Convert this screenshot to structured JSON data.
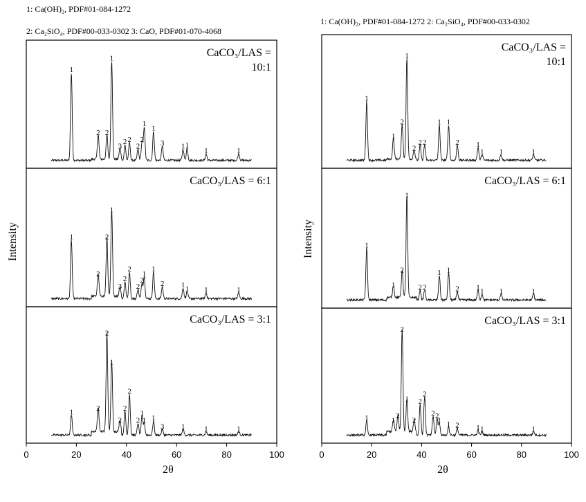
{
  "legend": {
    "left_line1": "1: Ca(OH)₂, PDF#01-084-1272",
    "left_line2": "2: Ca₂SiO₄, PDF#00-033-0302  3: CaO, PDF#01-070-4068",
    "right_line1": "1: Ca(OH)₂, PDF#01-084-1272  2: Ca₂SiO₄, PDF#00-033-0302"
  },
  "chart_data": [
    {
      "type": "line",
      "title": "",
      "xlabel": "2θ",
      "ylabel": "Intensity",
      "xlim": [
        0,
        100
      ],
      "xticks": [
        0,
        20,
        40,
        60,
        80,
        100
      ],
      "panels": [
        {
          "label_lines": [
            "CaCO₃/LAS =",
            "10:1"
          ],
          "peaks": [
            {
              "x": 18.0,
              "h": 0.78,
              "label": "1"
            },
            {
              "x": 28.7,
              "h": 0.22,
              "label": "2"
            },
            {
              "x": 32.2,
              "h": 0.22,
              "label": "2"
            },
            {
              "x": 34.1,
              "h": 0.88,
              "label": "1"
            },
            {
              "x": 37.4,
              "h": 0.1,
              "label": "3"
            },
            {
              "x": 39.4,
              "h": 0.14,
              "label": "2"
            },
            {
              "x": 41.2,
              "h": 0.16,
              "label": "2"
            },
            {
              "x": 44.6,
              "h": 0.1,
              "label": "2"
            },
            {
              "x": 46.2,
              "h": 0.16,
              "label": "2"
            },
            {
              "x": 47.1,
              "h": 0.3,
              "label": "1"
            },
            {
              "x": 50.8,
              "h": 0.26,
              "label": "1"
            },
            {
              "x": 54.3,
              "h": 0.13,
              "label": "3"
            },
            {
              "x": 62.6,
              "h": 0.1,
              "label": "1"
            },
            {
              "x": 64.2,
              "h": 0.11,
              "label": "1"
            },
            {
              "x": 71.8,
              "h": 0.06,
              "label": "1"
            },
            {
              "x": 84.8,
              "h": 0.06,
              "label": "1"
            }
          ]
        },
        {
          "label_lines": [
            "CaCO₃/LAS = 6:1"
          ],
          "peaks": [
            {
              "x": 18.0,
              "h": 0.48,
              "label": "1"
            },
            {
              "x": 28.7,
              "h": 0.18,
              "label": "2"
            },
            {
              "x": 32.2,
              "h": 0.48,
              "label": "2"
            },
            {
              "x": 34.1,
              "h": 0.7,
              "label": "1"
            },
            {
              "x": 37.4,
              "h": 0.08,
              "label": "3"
            },
            {
              "x": 39.4,
              "h": 0.14,
              "label": "2"
            },
            {
              "x": 41.2,
              "h": 0.22,
              "label": "2"
            },
            {
              "x": 44.6,
              "h": 0.08,
              "label": "2"
            },
            {
              "x": 46.2,
              "h": 0.13,
              "label": "2"
            },
            {
              "x": 47.1,
              "h": 0.18,
              "label": "1"
            },
            {
              "x": 50.8,
              "h": 0.22,
              "label": "1"
            },
            {
              "x": 54.3,
              "h": 0.1,
              "label": "2"
            },
            {
              "x": 62.6,
              "h": 0.09,
              "label": "1"
            },
            {
              "x": 64.2,
              "h": 0.06,
              "label": "1"
            },
            {
              "x": 71.8,
              "h": 0.05,
              "label": "1"
            },
            {
              "x": 84.8,
              "h": 0.05,
              "label": "1"
            }
          ]
        },
        {
          "label_lines": [
            "CaCO₃/LAS = 3:1"
          ],
          "peaks": [
            {
              "x": 18.0,
              "h": 0.17,
              "label": "1"
            },
            {
              "x": 28.7,
              "h": 0.2,
              "label": "2"
            },
            {
              "x": 32.2,
              "h": 0.82,
              "label": "2"
            },
            {
              "x": 34.1,
              "h": 0.58,
              "label": "1"
            },
            {
              "x": 37.4,
              "h": 0.1,
              "label": "2"
            },
            {
              "x": 39.4,
              "h": 0.2,
              "label": "2"
            },
            {
              "x": 41.2,
              "h": 0.34,
              "label": "2"
            },
            {
              "x": 44.6,
              "h": 0.1,
              "label": "2"
            },
            {
              "x": 46.2,
              "h": 0.16,
              "label": "1"
            },
            {
              "x": 47.1,
              "h": 0.1,
              "label": "1"
            },
            {
              "x": 50.8,
              "h": 0.12,
              "label": "1"
            },
            {
              "x": 54.3,
              "h": 0.05,
              "label": "3"
            },
            {
              "x": 62.6,
              "h": 0.05,
              "label": "1"
            },
            {
              "x": 71.8,
              "h": 0.03,
              "label": "1"
            },
            {
              "x": 84.8,
              "h": 0.03,
              "label": "1"
            }
          ]
        }
      ]
    },
    {
      "type": "line",
      "title": "",
      "xlabel": "2θ",
      "ylabel": "Intensity",
      "xlim": [
        0,
        100
      ],
      "xticks": [
        0,
        20,
        40,
        60,
        80,
        100
      ],
      "panels": [
        {
          "label_lines": [
            "CaCO₃/LAS =",
            "10:1"
          ],
          "peaks": [
            {
              "x": 18.0,
              "h": 0.5,
              "label": "1"
            },
            {
              "x": 28.7,
              "h": 0.18,
              "label": "1"
            },
            {
              "x": 32.2,
              "h": 0.3,
              "label": "2"
            },
            {
              "x": 34.1,
              "h": 0.86,
              "label": "1"
            },
            {
              "x": 37.0,
              "h": 0.08,
              "label": "2"
            },
            {
              "x": 39.4,
              "h": 0.13,
              "label": "2"
            },
            {
              "x": 41.2,
              "h": 0.13,
              "label": "2"
            },
            {
              "x": 47.1,
              "h": 0.3,
              "label": "1"
            },
            {
              "x": 50.8,
              "h": 0.3,
              "label": "1"
            },
            {
              "x": 54.3,
              "h": 0.13,
              "label": "2"
            },
            {
              "x": 62.6,
              "h": 0.11,
              "label": "1"
            },
            {
              "x": 64.2,
              "h": 0.05,
              "label": "1"
            },
            {
              "x": 71.8,
              "h": 0.05,
              "label": "1"
            },
            {
              "x": 84.8,
              "h": 0.05,
              "label": "1"
            }
          ]
        },
        {
          "label_lines": [
            "CaCO₃/LAS = 6:1"
          ],
          "peaks": [
            {
              "x": 18.0,
              "h": 0.42,
              "label": "1"
            },
            {
              "x": 28.7,
              "h": 0.1,
              "label": "1"
            },
            {
              "x": 32.2,
              "h": 0.22,
              "label": "2"
            },
            {
              "x": 34.1,
              "h": 0.82,
              "label": "1"
            },
            {
              "x": 39.4,
              "h": 0.08,
              "label": "2"
            },
            {
              "x": 41.2,
              "h": 0.08,
              "label": "2"
            },
            {
              "x": 47.1,
              "h": 0.2,
              "label": "1"
            },
            {
              "x": 50.8,
              "h": 0.22,
              "label": "1"
            },
            {
              "x": 54.3,
              "h": 0.07,
              "label": "2"
            },
            {
              "x": 62.6,
              "h": 0.08,
              "label": "1"
            },
            {
              "x": 64.2,
              "h": 0.05,
              "label": "1"
            },
            {
              "x": 71.8,
              "h": 0.05,
              "label": "1"
            },
            {
              "x": 84.8,
              "h": 0.05,
              "label": "1"
            }
          ]
        },
        {
          "label_lines": [
            "CaCO₃/LAS = 3:1"
          ],
          "peaks": [
            {
              "x": 18.0,
              "h": 0.12,
              "label": "1"
            },
            {
              "x": 28.7,
              "h": 0.1,
              "label": "1"
            },
            {
              "x": 30.5,
              "h": 0.14,
              "label": "2"
            },
            {
              "x": 32.2,
              "h": 0.86,
              "label": "2"
            },
            {
              "x": 34.1,
              "h": 0.28,
              "label": "1"
            },
            {
              "x": 37.0,
              "h": 0.1,
              "label": "2"
            },
            {
              "x": 39.4,
              "h": 0.26,
              "label": "2"
            },
            {
              "x": 41.2,
              "h": 0.32,
              "label": "2"
            },
            {
              "x": 44.6,
              "h": 0.16,
              "label": "2"
            },
            {
              "x": 46.2,
              "h": 0.14,
              "label": "2"
            },
            {
              "x": 47.1,
              "h": 0.1,
              "label": "1"
            },
            {
              "x": 50.8,
              "h": 0.07,
              "label": "1"
            },
            {
              "x": 54.3,
              "h": 0.06,
              "label": "2"
            },
            {
              "x": 62.6,
              "h": 0.04,
              "label": "1"
            },
            {
              "x": 64.2,
              "h": 0.03,
              "label": "1"
            },
            {
              "x": 84.8,
              "h": 0.03,
              "label": "1"
            }
          ]
        }
      ]
    }
  ]
}
